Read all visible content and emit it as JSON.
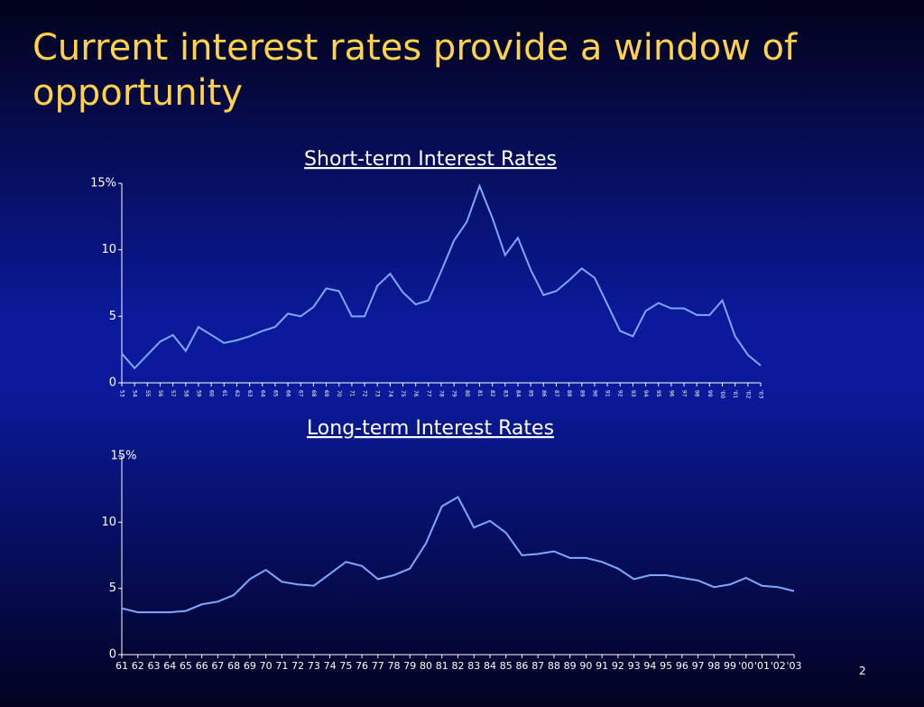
{
  "slide": {
    "title": "Current interest rates provide a window of opportunity",
    "page_number": "2"
  },
  "chart_data": [
    {
      "type": "line",
      "title": "Short-term Interest Rates",
      "categories": [
        "53",
        "54",
        "55",
        "56",
        "57",
        "58",
        "59",
        "60",
        "61",
        "62",
        "63",
        "64",
        "65",
        "66",
        "67",
        "68",
        "69",
        "70",
        "71",
        "72",
        "73",
        "74",
        "75",
        "76",
        "77",
        "78",
        "79",
        "80",
        "81",
        "82",
        "83",
        "84",
        "85",
        "86",
        "87",
        "88",
        "89",
        "90",
        "91",
        "92",
        "93",
        "94",
        "95",
        "96",
        "97",
        "98",
        "99",
        "'00",
        "'01",
        "'02",
        "'03"
      ],
      "values": [
        2.2,
        1.1,
        2.1,
        3.1,
        3.6,
        2.4,
        4.2,
        3.6,
        3.0,
        3.2,
        3.5,
        3.9,
        4.2,
        5.2,
        5.0,
        5.7,
        7.1,
        6.9,
        5.0,
        5.0,
        7.3,
        8.2,
        6.8,
        5.9,
        6.2,
        8.4,
        10.7,
        12.1,
        14.8,
        12.4,
        9.6,
        10.9,
        8.5,
        6.6,
        6.9,
        7.7,
        8.6,
        7.9,
        5.9,
        3.9,
        3.5,
        5.4,
        6.0,
        5.6,
        5.6,
        5.1,
        5.1,
        6.2,
        3.5,
        2.1,
        1.3
      ],
      "color": "#7fa8ff",
      "ylim": [
        0,
        15
      ],
      "yticks": [
        0,
        5,
        10,
        {
          "value": 15,
          "label": "15%"
        }
      ]
    },
    {
      "type": "line",
      "title": "Long-term Interest Rates",
      "categories": [
        "61",
        "62",
        "63",
        "64",
        "65",
        "66",
        "67",
        "68",
        "69",
        "70",
        "71",
        "72",
        "73",
        "74",
        "75",
        "76",
        "77",
        "78",
        "79",
        "80",
        "81",
        "82",
        "83",
        "84",
        "85",
        "86",
        "87",
        "88",
        "89",
        "90",
        "91",
        "92",
        "93",
        "94",
        "95",
        "96",
        "97",
        "98",
        "99",
        "'00",
        "'01",
        "'02",
        "'03"
      ],
      "values": [
        3.5,
        3.2,
        3.2,
        3.2,
        3.3,
        3.8,
        4.0,
        4.5,
        5.7,
        6.4,
        5.5,
        5.3,
        5.2,
        6.1,
        7.0,
        6.7,
        5.7,
        6.0,
        6.5,
        8.4,
        11.2,
        11.9,
        9.6,
        10.1,
        9.2,
        7.5,
        7.6,
        7.8,
        7.3,
        7.3,
        7.0,
        6.5,
        5.7,
        6.0,
        6.0,
        5.8,
        5.6,
        5.1,
        5.3,
        5.8,
        5.2,
        5.1,
        4.8
      ],
      "color": "#7fa8ff",
      "ylim": [
        0,
        15
      ],
      "yticks": [
        0,
        5,
        10,
        {
          "value": 15,
          "label": "15%"
        }
      ]
    }
  ]
}
